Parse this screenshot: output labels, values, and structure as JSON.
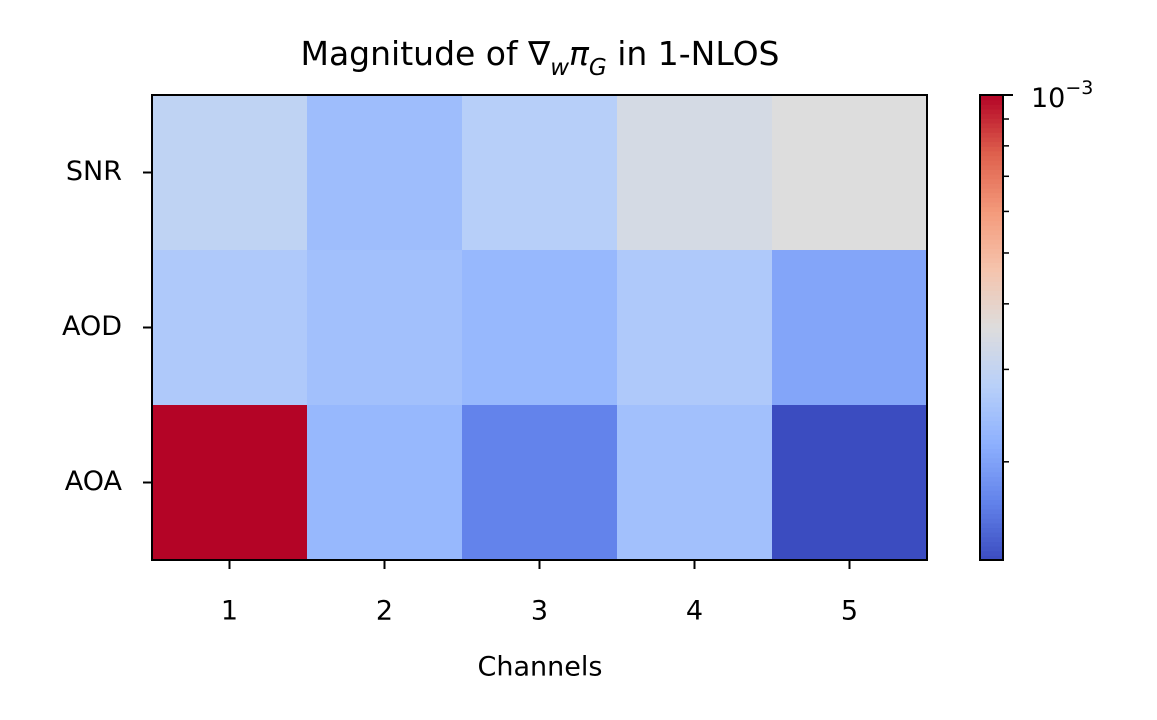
{
  "chart_data": {
    "type": "heatmap",
    "title": [
      {
        "text": "Magnitude of ∇"
      },
      {
        "text": "w",
        "sub": true
      },
      {
        "text": "π"
      },
      {
        "text": "G",
        "sub": true
      },
      {
        "text": " in 1-NLOS"
      }
    ],
    "xlabel": "Channels",
    "x_categories": [
      "1",
      "2",
      "3",
      "4",
      "5"
    ],
    "y_categories": [
      "SNR",
      "AOD",
      "AOA"
    ],
    "values": [
      [
        0.000294,
        0.00024,
        0.000277,
        0.000339,
        0.00036
      ],
      [
        0.000265,
        0.000245,
        0.00023,
        0.000265,
        0.000204
      ],
      [
        0.001,
        0.00023,
        0.000169,
        0.000245,
        0.00013
      ]
    ],
    "colormap": "coolwarm",
    "color_scale": "log",
    "clim": [
      0.00013,
      0.001
    ],
    "cticks": [
      {
        "value": 0.001,
        "label": [
          {
            "text": "10"
          },
          {
            "text": "−3",
            "sup": true
          }
        ]
      }
    ],
    "cticks_minor": [
      0.0002,
      0.0003,
      0.0004,
      0.0005,
      0.0006,
      0.0007,
      0.0008,
      0.0009
    ]
  }
}
